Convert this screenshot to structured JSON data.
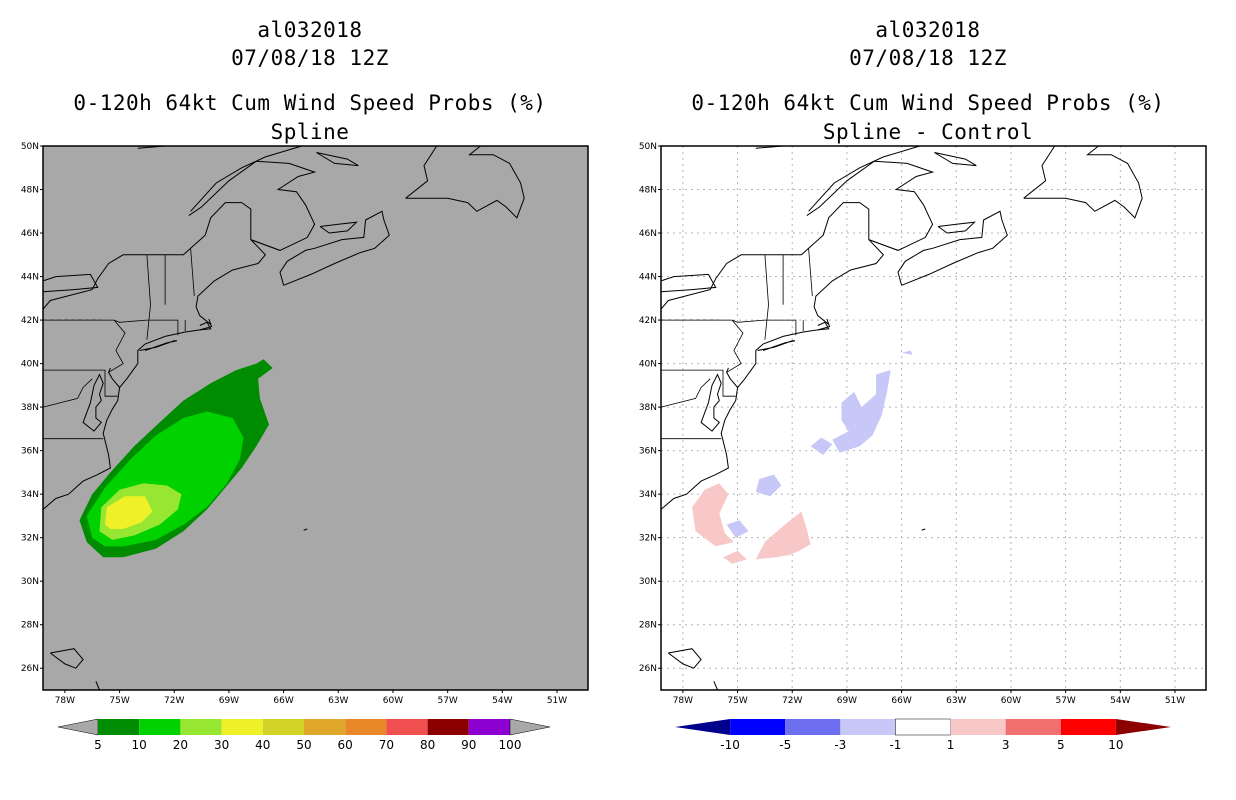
{
  "panels": [
    {
      "storm_id": "al032018",
      "datetime": "07/08/18 12Z",
      "product_title": "0-120h 64kt Cum Wind Speed Probs (%)",
      "subtitle": "Spline",
      "background_color": "#a8a8a8",
      "colorbar": {
        "labels": [
          "5",
          "10",
          "20",
          "30",
          "40",
          "50",
          "60",
          "70",
          "80",
          "90",
          "100"
        ],
        "colors": [
          "#008c00",
          "#00d200",
          "#96e632",
          "#f0f028",
          "#d2d228",
          "#e0a82a",
          "#e88828",
          "#f05050",
          "#8c0000",
          "#8c00d2"
        ]
      }
    },
    {
      "storm_id": "al032018",
      "datetime": "07/08/18 12Z",
      "product_title": "0-120h 64kt Cum Wind Speed Probs (%)",
      "subtitle": "Spline - Control",
      "background_color": "#ffffff",
      "colorbar": {
        "labels": [
          "-10",
          "-5",
          "-3",
          "-1",
          "1",
          "3",
          "5",
          "10"
        ],
        "colors": [
          "#00008c",
          "#0000ff",
          "#6e6ef0",
          "#c8c8f8",
          "#ffffff",
          "#f8c8c8",
          "#f07070",
          "#ff0000",
          "#8c0000"
        ]
      }
    }
  ],
  "map": {
    "lat_labels": [
      "50N",
      "48N",
      "46N",
      "44N",
      "42N",
      "40N",
      "38N",
      "36N",
      "34N",
      "32N",
      "30N",
      "28N",
      "26N"
    ],
    "lon_labels": [
      "78W",
      "75W",
      "72W",
      "69W",
      "66W",
      "63W",
      "60W",
      "57W",
      "54W",
      "51W"
    ],
    "coast_color": "#000000",
    "grid_color": "#b4b4b4"
  }
}
